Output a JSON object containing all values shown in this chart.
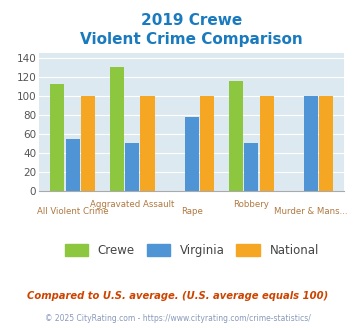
{
  "title_line1": "2019 Crewe",
  "title_line2": "Violent Crime Comparison",
  "categories": [
    "All Violent Crime",
    "Aggravated Assault",
    "Rape",
    "Robbery",
    "Murder & Mans..."
  ],
  "series": {
    "Crewe": [
      112,
      130,
      0,
      116,
      0
    ],
    "Virginia": [
      55,
      51,
      78,
      51,
      100
    ],
    "National": [
      100,
      100,
      100,
      100,
      100
    ]
  },
  "colors": {
    "Crewe": "#8dc63f",
    "Virginia": "#4f94d4",
    "National": "#f5a623"
  },
  "ylim": [
    0,
    145
  ],
  "yticks": [
    0,
    20,
    40,
    60,
    80,
    100,
    120,
    140
  ],
  "bg_color": "#dce9f0",
  "grid_color": "#ffffff",
  "title_color": "#1a7abf",
  "xlabel_color": "#b07840",
  "legend_label_color": "#444444",
  "footnote1": "Compared to U.S. average. (U.S. average equals 100)",
  "footnote2": "© 2025 CityRating.com - https://www.cityrating.com/crime-statistics/",
  "footnote1_color": "#cc4400",
  "footnote2_color": "#8899bb"
}
